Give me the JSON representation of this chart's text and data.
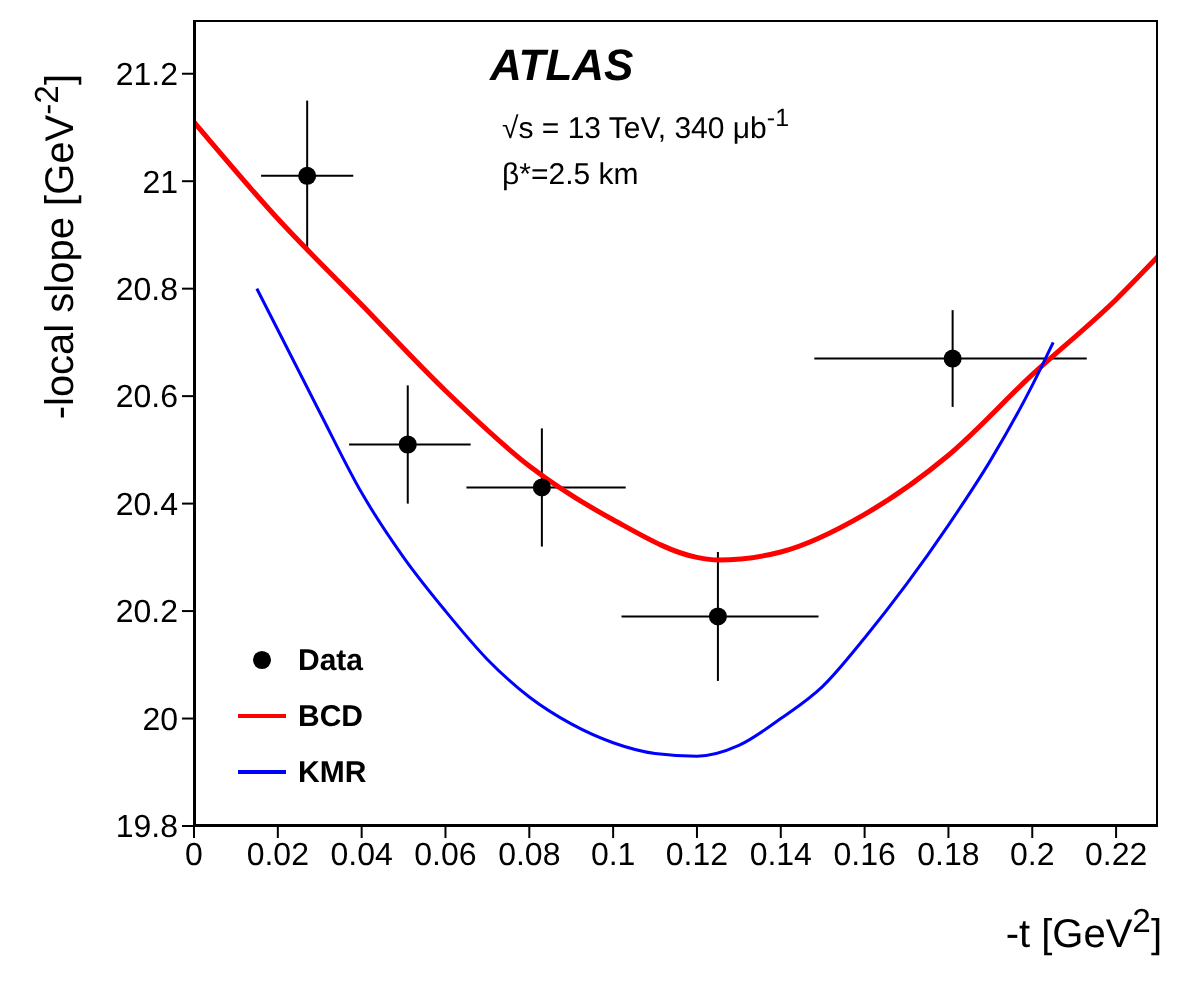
{
  "chart_data": {
    "type": "scatter",
    "xlabel": "-t [GeV$^{2}$]",
    "ylabel": "-local slope [GeV$^{-2}$]",
    "annotations": [
      "ATLAS",
      "√s = 13 TeV, 340 μb$^{-1}$",
      "β*=2.5 km"
    ],
    "xlim": [
      0,
      0.23
    ],
    "xticks": [
      0,
      0.02,
      0.04,
      0.06,
      0.08,
      0.1,
      0.12,
      0.14,
      0.16,
      0.18,
      0.2,
      0.22
    ],
    "ylim": [
      19.8,
      21.3
    ],
    "yticks": [
      19.8,
      20,
      20.2,
      20.4,
      20.6,
      20.8,
      21,
      21.2
    ],
    "legend": "bottom left",
    "grid": false,
    "series": [
      {
        "name": "Data",
        "color": "#000000",
        "marker": "circle",
        "x": [
          0.027,
          0.051,
          0.083,
          0.125,
          0.181
        ],
        "values": [
          21.01,
          20.51,
          20.43,
          20.19,
          20.67
        ],
        "errors": [
          [
            20.87,
            21.15
          ],
          [
            20.4,
            20.62
          ],
          [
            20.32,
            20.54
          ],
          [
            20.07,
            20.31
          ],
          [
            20.58,
            20.76
          ]
        ],
        "xerrors": [
          [
            0.016,
            0.038
          ],
          [
            0.037,
            0.066
          ],
          [
            0.065,
            0.103
          ],
          [
            0.102,
            0.149
          ],
          [
            0.148,
            0.213
          ]
        ]
      },
      {
        "name": "BCD",
        "type": "line",
        "color": "#ff0000",
        "x": [
          0,
          0.02,
          0.04,
          0.06,
          0.08,
          0.1,
          0.12,
          0.125,
          0.14,
          0.16,
          0.18,
          0.2,
          0.22,
          0.23
        ],
        "values": [
          21.11,
          20.93,
          20.77,
          20.61,
          20.47,
          20.37,
          20.3,
          20.295,
          20.31,
          20.38,
          20.49,
          20.64,
          20.78,
          20.86
        ]
      },
      {
        "name": "KMR",
        "type": "line",
        "color": "#0000ff",
        "x": [
          0.015,
          0.03,
          0.04,
          0.05,
          0.06,
          0.07,
          0.08,
          0.09,
          0.1,
          0.11,
          0.12,
          0.13,
          0.14,
          0.15,
          0.16,
          0.17,
          0.18,
          0.19,
          0.2,
          0.205
        ],
        "values": [
          20.8,
          20.57,
          20.42,
          20.3,
          20.2,
          20.11,
          20.04,
          19.99,
          19.955,
          19.935,
          19.93,
          19.95,
          20.0,
          20.06,
          20.15,
          20.25,
          20.36,
          20.48,
          20.62,
          20.7
        ]
      }
    ]
  }
}
